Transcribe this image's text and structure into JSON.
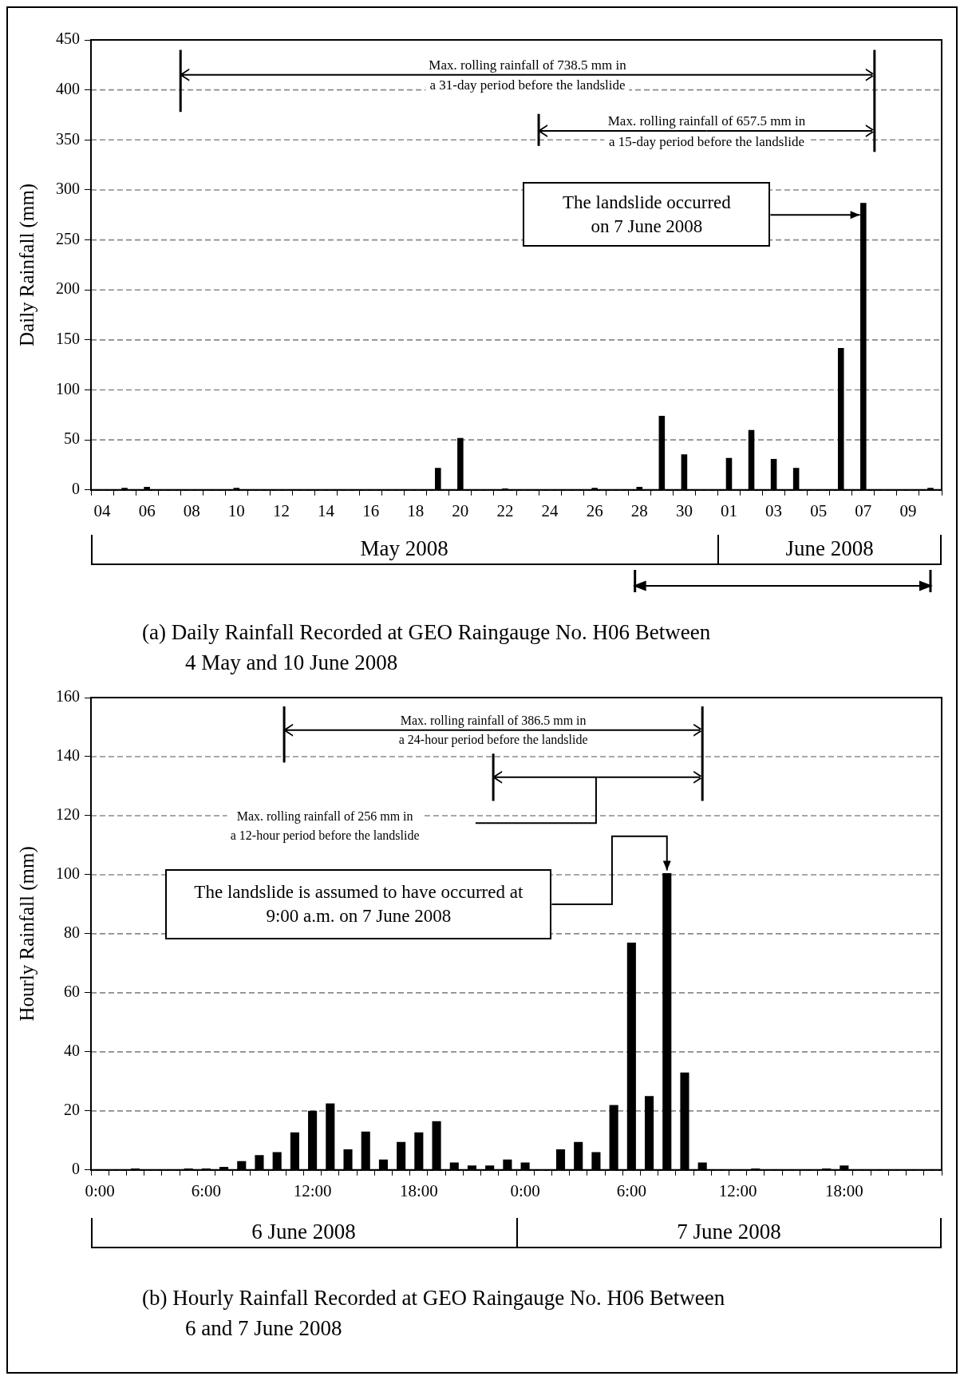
{
  "chart_data": [
    {
      "type": "bar",
      "title": "(a) Daily Rainfall Recorded at GEO Raingauge No. H06 Between\n4 May and 10 June 2008",
      "ylabel": "Daily Rainfall (mm)",
      "color": "#000000",
      "grid": "y",
      "ylim": [
        0,
        450
      ],
      "yticks": [
        0,
        50,
        100,
        150,
        200,
        250,
        300,
        350,
        400,
        450
      ],
      "categories": [
        "04",
        null,
        "06",
        null,
        "08",
        null,
        "10",
        null,
        "12",
        null,
        "14",
        null,
        "16",
        null,
        "18",
        null,
        "20",
        null,
        "22",
        null,
        "24",
        null,
        "26",
        null,
        "28",
        null,
        "30",
        null,
        "01",
        null,
        "03",
        null,
        "05",
        null,
        "07",
        null,
        "09",
        null
      ],
      "values": [
        0,
        2,
        3,
        0,
        0,
        0,
        2,
        0.5,
        0,
        0,
        0,
        0,
        0,
        0,
        0,
        22,
        52,
        0,
        1.5,
        0,
        0,
        0,
        2,
        0,
        3,
        74,
        35.5,
        0,
        32,
        60,
        31,
        22,
        0,
        142,
        287,
        0,
        0,
        2
      ],
      "annotations": [
        "Max. rolling rainfall of 738.5 mm in\na 31-day period before the landslide",
        "Max. rolling rainfall of 657.5 mm in\na 15-day period before the landslide",
        "The landslide occurred\non 7 June 2008",
        "May 2008",
        "June 2008"
      ]
    },
    {
      "type": "bar",
      "title": "(b) Hourly Rainfall Recorded at GEO Raingauge No. H06 Between\n6 and 7 June 2008",
      "ylabel": "Hourly Rainfall (mm)",
      "color": "#000000",
      "grid": "y",
      "ylim": [
        0,
        160
      ],
      "yticks": [
        0,
        20,
        40,
        60,
        80,
        100,
        120,
        140,
        160
      ],
      "categories": [
        "0:00",
        null,
        null,
        null,
        null,
        null,
        "6:00",
        null,
        null,
        null,
        null,
        null,
        "12:00",
        null,
        null,
        null,
        null,
        null,
        "18:00",
        null,
        null,
        null,
        null,
        null,
        "0:00",
        null,
        null,
        null,
        null,
        null,
        "6:00",
        null,
        null,
        null,
        null,
        null,
        "12:00",
        null,
        null,
        null,
        null,
        null,
        "18:00",
        null,
        null,
        null,
        null,
        null
      ],
      "values": [
        0,
        0,
        0.5,
        0,
        0,
        0.5,
        0.5,
        1,
        3,
        5,
        6,
        12.7,
        20,
        22.5,
        7,
        13,
        3.5,
        9.5,
        12.7,
        16.5,
        2.5,
        1.5,
        1.5,
        3.5,
        2.5,
        0,
        7,
        9.5,
        6,
        22,
        77,
        25,
        100.5,
        33,
        2.5,
        0,
        0,
        0.5,
        0,
        0,
        0,
        0.5,
        1.5,
        0,
        0,
        0,
        0,
        0
      ],
      "annotations": [
        "Max. rolling rainfall of 386.5 mm in\na 24-hour period before the landslide",
        "Max. rolling rainfall of 256 mm in\na 12-hour period before the landslide",
        "The landslide is assumed to have occurred at\n9:00 a.m. on 7 June 2008",
        "6 June 2008",
        "7 June 2008"
      ]
    }
  ]
}
